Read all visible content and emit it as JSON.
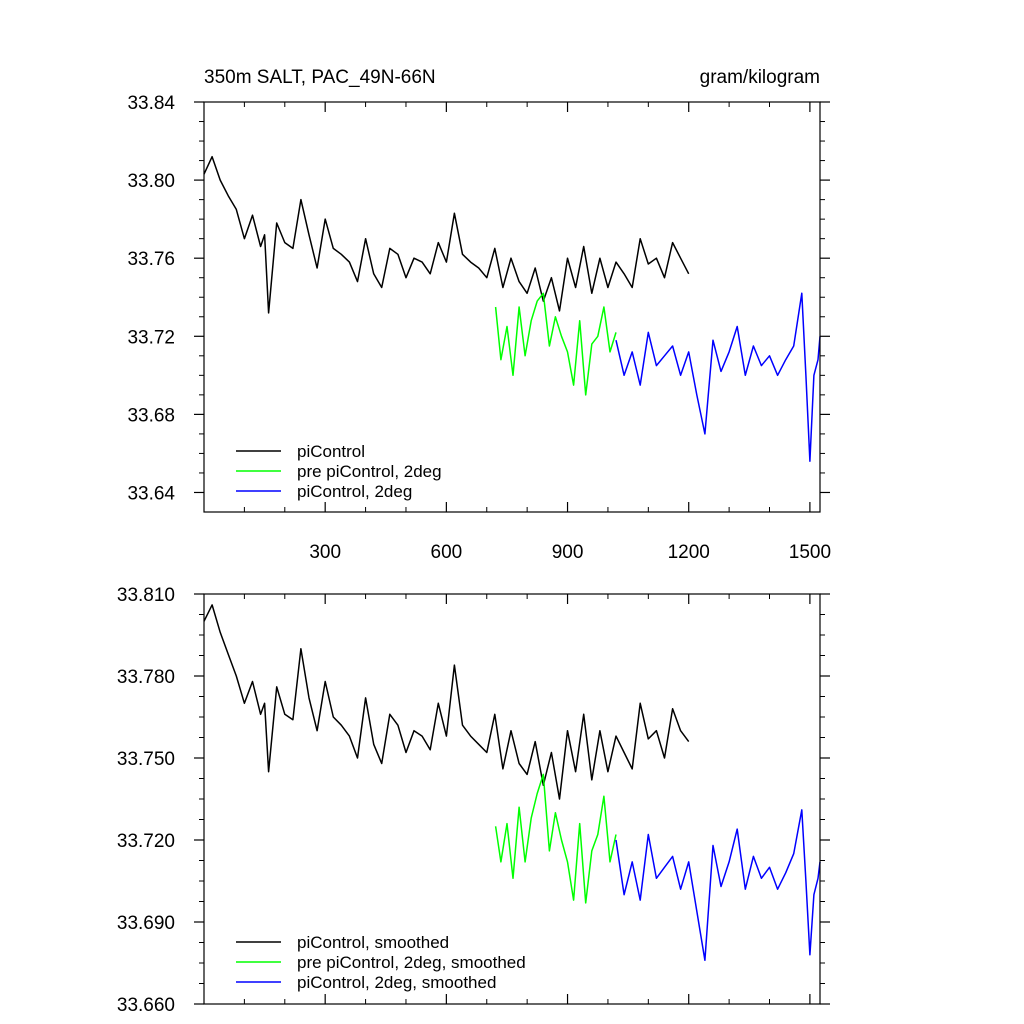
{
  "chart_data": [
    {
      "type": "line",
      "title": "350m SALT, PAC_49N-66N",
      "units": "gram/kilogram",
      "xlim": [
        0,
        1525
      ],
      "ylim": [
        33.63,
        33.84
      ],
      "xticks": [
        300,
        600,
        900,
        1200,
        1500
      ],
      "xtick_labels": [
        "300",
        "600",
        "900",
        "1200",
        "1500"
      ],
      "yticks": [
        33.64,
        33.68,
        33.72,
        33.76,
        33.8,
        33.84
      ],
      "ytick_labels": [
        "33.64",
        "33.68",
        "33.72",
        "33.76",
        "33.80",
        "33.84"
      ],
      "legend_position": "bottom-left",
      "series": [
        {
          "name": "piControl",
          "color": "#000000",
          "x": [
            0,
            20,
            40,
            60,
            80,
            100,
            120,
            140,
            150,
            160,
            180,
            200,
            220,
            240,
            260,
            280,
            300,
            320,
            340,
            360,
            380,
            400,
            420,
            440,
            460,
            480,
            500,
            520,
            540,
            560,
            580,
            600,
            620,
            640,
            660,
            680,
            700,
            720,
            740,
            760,
            780,
            800,
            820,
            840,
            860,
            880,
            900,
            920,
            940,
            960,
            980,
            1000,
            1020,
            1040,
            1060,
            1080,
            1100,
            1120,
            1140,
            1160,
            1180,
            1200
          ],
          "y": [
            33.803,
            33.812,
            33.8,
            33.792,
            33.785,
            33.77,
            33.782,
            33.766,
            33.772,
            33.732,
            33.778,
            33.768,
            33.765,
            33.79,
            33.772,
            33.755,
            33.78,
            33.765,
            33.762,
            33.758,
            33.748,
            33.77,
            33.752,
            33.745,
            33.765,
            33.762,
            33.75,
            33.76,
            33.758,
            33.752,
            33.768,
            33.758,
            33.783,
            33.762,
            33.758,
            33.755,
            33.75,
            33.765,
            33.745,
            33.76,
            33.748,
            33.742,
            33.755,
            33.738,
            33.75,
            33.733,
            33.76,
            33.745,
            33.766,
            33.742,
            33.76,
            33.745,
            33.758,
            33.752,
            33.745,
            33.77,
            33.757,
            33.76,
            33.75,
            33.768,
            33.76,
            33.752
          ]
        },
        {
          "name": "pre piControl, 2deg",
          "color": "#00ff00",
          "x": [
            722,
            735,
            750,
            765,
            780,
            795,
            810,
            825,
            840,
            855,
            870,
            885,
            900,
            915,
            930,
            945,
            960,
            975,
            990,
            1005,
            1020
          ],
          "y": [
            33.735,
            33.708,
            33.725,
            33.7,
            33.735,
            33.71,
            33.728,
            33.738,
            33.742,
            33.715,
            33.73,
            33.72,
            33.712,
            33.695,
            33.728,
            33.69,
            33.716,
            33.72,
            33.735,
            33.712,
            33.722
          ]
        },
        {
          "name": "piControl, 2deg",
          "color": "#0000ff",
          "x": [
            1020,
            1040,
            1060,
            1080,
            1100,
            1120,
            1140,
            1160,
            1180,
            1200,
            1220,
            1240,
            1260,
            1280,
            1300,
            1320,
            1340,
            1360,
            1380,
            1400,
            1420,
            1440,
            1460,
            1480,
            1490,
            1500,
            1510,
            1520,
            1525
          ],
          "y": [
            33.718,
            33.7,
            33.712,
            33.695,
            33.722,
            33.705,
            33.71,
            33.715,
            33.7,
            33.712,
            33.69,
            33.67,
            33.718,
            33.702,
            33.712,
            33.725,
            33.7,
            33.715,
            33.705,
            33.71,
            33.7,
            33.708,
            33.715,
            33.742,
            33.7,
            33.656,
            33.7,
            33.708,
            33.72
          ]
        }
      ]
    },
    {
      "type": "line",
      "title": "",
      "xlim": [
        0,
        1525
      ],
      "ylim": [
        33.66,
        33.81
      ],
      "xticks": [
        300,
        600,
        900,
        1200,
        1500
      ],
      "yticks": [
        33.66,
        33.69,
        33.72,
        33.75,
        33.78,
        33.81
      ],
      "ytick_labels": [
        "33.660",
        "33.690",
        "33.720",
        "33.750",
        "33.780",
        "33.810"
      ],
      "legend_position": "bottom-left",
      "series": [
        {
          "name": "piControl, smoothed",
          "color": "#000000",
          "x": [
            0,
            20,
            40,
            60,
            80,
            100,
            120,
            140,
            150,
            160,
            180,
            200,
            220,
            240,
            260,
            280,
            300,
            320,
            340,
            360,
            380,
            400,
            420,
            440,
            460,
            480,
            500,
            520,
            540,
            560,
            580,
            600,
            620,
            640,
            660,
            680,
            700,
            720,
            740,
            760,
            780,
            800,
            820,
            840,
            860,
            880,
            900,
            920,
            940,
            960,
            980,
            1000,
            1020,
            1040,
            1060,
            1080,
            1100,
            1120,
            1140,
            1160,
            1180,
            1200
          ],
          "y": [
            33.8,
            33.806,
            33.796,
            33.788,
            33.78,
            33.77,
            33.778,
            33.766,
            33.77,
            33.745,
            33.776,
            33.766,
            33.764,
            33.79,
            33.772,
            33.76,
            33.778,
            33.765,
            33.762,
            33.758,
            33.75,
            33.772,
            33.755,
            33.748,
            33.766,
            33.762,
            33.752,
            33.76,
            33.758,
            33.753,
            33.77,
            33.758,
            33.784,
            33.762,
            33.758,
            33.755,
            33.752,
            33.766,
            33.746,
            33.76,
            33.748,
            33.744,
            33.756,
            33.74,
            33.752,
            33.735,
            33.76,
            33.745,
            33.766,
            33.742,
            33.76,
            33.745,
            33.758,
            33.752,
            33.746,
            33.77,
            33.757,
            33.76,
            33.75,
            33.768,
            33.76,
            33.756
          ]
        },
        {
          "name": "pre piControl, 2deg, smoothed",
          "color": "#00ff00",
          "x": [
            722,
            735,
            750,
            765,
            780,
            795,
            810,
            825,
            840,
            855,
            870,
            885,
            900,
            915,
            930,
            945,
            960,
            975,
            990,
            1005,
            1020
          ],
          "y": [
            33.725,
            33.712,
            33.726,
            33.706,
            33.732,
            33.712,
            33.728,
            33.737,
            33.744,
            33.716,
            33.73,
            33.72,
            33.712,
            33.698,
            33.726,
            33.697,
            33.716,
            33.722,
            33.736,
            33.712,
            33.722
          ]
        },
        {
          "name": "piControl, 2deg, smoothed",
          "color": "#0000ff",
          "x": [
            1020,
            1040,
            1060,
            1080,
            1100,
            1120,
            1140,
            1160,
            1180,
            1200,
            1220,
            1240,
            1260,
            1280,
            1300,
            1320,
            1340,
            1360,
            1380,
            1400,
            1420,
            1440,
            1460,
            1480,
            1490,
            1500,
            1510,
            1520,
            1525
          ],
          "y": [
            33.72,
            33.7,
            33.712,
            33.698,
            33.722,
            33.706,
            33.71,
            33.714,
            33.702,
            33.712,
            33.694,
            33.676,
            33.718,
            33.703,
            33.712,
            33.724,
            33.702,
            33.714,
            33.706,
            33.71,
            33.702,
            33.708,
            33.715,
            33.731,
            33.705,
            33.678,
            33.7,
            33.706,
            33.712
          ]
        }
      ]
    }
  ]
}
